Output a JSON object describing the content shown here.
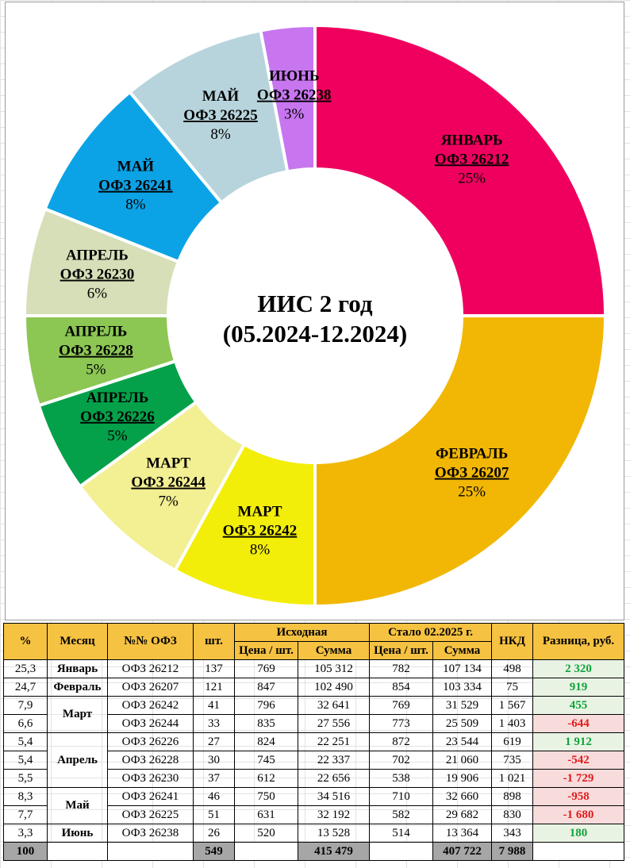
{
  "chart_data": {
    "type": "pie",
    "donut": true,
    "title": "ИИС 2 год",
    "subtitle": "(05.2024-12.2024)",
    "slices": [
      {
        "month": "ЯНВАРЬ",
        "ofz": "ОФЗ 26212",
        "value": 25,
        "label": "25%",
        "color": "#f0005e"
      },
      {
        "month": "ФЕВРАЛЬ",
        "ofz": "ОФЗ 26207",
        "value": 25,
        "label": "25%",
        "color": "#f2b705"
      },
      {
        "month": "МАРТ",
        "ofz": "ОФЗ 26242",
        "value": 8,
        "label": "8%",
        "color": "#f2ee0a"
      },
      {
        "month": "МАРТ",
        "ofz": "ОФЗ 26244",
        "value": 7,
        "label": "7%",
        "color": "#f3ef93"
      },
      {
        "month": "АПРЕЛЬ",
        "ofz": "ОФЗ 26226",
        "value": 5,
        "label": "5%",
        "color": "#05a14a"
      },
      {
        "month": "АПРЕЛЬ",
        "ofz": "ОФЗ 26228",
        "value": 5,
        "label": "5%",
        "color": "#8cc653"
      },
      {
        "month": "АПРЕЛЬ",
        "ofz": "ОФЗ 26230",
        "value": 6,
        "label": "6%",
        "color": "#d6dfb8"
      },
      {
        "month": "МАЙ",
        "ofz": "ОФЗ 26241",
        "value": 8,
        "label": "8%",
        "color": "#0ba3e6"
      },
      {
        "month": "МАЙ",
        "ofz": "ОФЗ 26225",
        "value": 8,
        "label": "8%",
        "color": "#b7d4dc"
      },
      {
        "month": "ИЮНЬ",
        "ofz": "ОФЗ 26238",
        "value": 3,
        "label": "3%",
        "color": "#c776f0"
      }
    ]
  },
  "table": {
    "headers": {
      "pct": "%",
      "month": "Месяц",
      "ofz": "№№ ОФЗ",
      "qty": "шт.",
      "initial": "Исходная",
      "current": "Стало 02.2025 г.",
      "price": "Цена / шт.",
      "sum": "Сумма",
      "nkd": "НКД",
      "diff": "Разница, руб."
    },
    "rows": [
      {
        "pct": "25,3",
        "month": "Январь",
        "ofz": "ОФЗ 26212",
        "qty": "137",
        "price0": "769",
        "sum0": "105 312",
        "price1": "782",
        "sum1": "107 134",
        "nkd": "498",
        "diff": "2 320",
        "positive": true
      },
      {
        "pct": "24,7",
        "month": "Февраль",
        "ofz": "ОФЗ 26207",
        "qty": "121",
        "price0": "847",
        "sum0": "102 490",
        "price1": "854",
        "sum1": "103 334",
        "nkd": "75",
        "diff": "919",
        "positive": true
      },
      {
        "pct": "7,9",
        "month": "Март",
        "ofz": "ОФЗ 26242",
        "qty": "41",
        "price0": "796",
        "sum0": "32 641",
        "price1": "769",
        "sum1": "31 529",
        "nkd": "1 567",
        "diff": "455",
        "positive": true
      },
      {
        "pct": "6,6",
        "month": "",
        "ofz": "ОФЗ 26244",
        "qty": "33",
        "price0": "835",
        "sum0": "27 556",
        "price1": "773",
        "sum1": "25 509",
        "nkd": "1 403",
        "diff": "-644",
        "positive": false
      },
      {
        "pct": "5,4",
        "month": "Апрель",
        "ofz": "ОФЗ 26226",
        "qty": "27",
        "price0": "824",
        "sum0": "22 251",
        "price1": "872",
        "sum1": "23 544",
        "nkd": "619",
        "diff": "1 912",
        "positive": true
      },
      {
        "pct": "5,4",
        "month": "",
        "ofz": "ОФЗ 26228",
        "qty": "30",
        "price0": "745",
        "sum0": "22 337",
        "price1": "702",
        "sum1": "21 060",
        "nkd": "735",
        "diff": "-542",
        "positive": false
      },
      {
        "pct": "5,5",
        "month": "",
        "ofz": "ОФЗ 26230",
        "qty": "37",
        "price0": "612",
        "sum0": "22 656",
        "price1": "538",
        "sum1": "19 906",
        "nkd": "1 021",
        "diff": "-1 729",
        "positive": false
      },
      {
        "pct": "8,3",
        "month": "Май",
        "ofz": "ОФЗ 26241",
        "qty": "46",
        "price0": "750",
        "sum0": "34 516",
        "price1": "710",
        "sum1": "32 660",
        "nkd": "898",
        "diff": "-958",
        "positive": false
      },
      {
        "pct": "7,7",
        "month": "",
        "ofz": "ОФЗ 26225",
        "qty": "51",
        "price0": "631",
        "sum0": "32 192",
        "price1": "582",
        "sum1": "29 682",
        "nkd": "830",
        "diff": "-1 680",
        "positive": false
      },
      {
        "pct": "3,3",
        "month": "Июнь",
        "ofz": "ОФЗ 26238",
        "qty": "26",
        "price0": "520",
        "sum0": "13 528",
        "price1": "514",
        "sum1": "13 364",
        "nkd": "343",
        "diff": "180",
        "positive": true
      }
    ],
    "total": {
      "pct": "100",
      "qty": "549",
      "sum0": "415 479",
      "sum1": "407 722",
      "nkd": "7 988"
    }
  }
}
